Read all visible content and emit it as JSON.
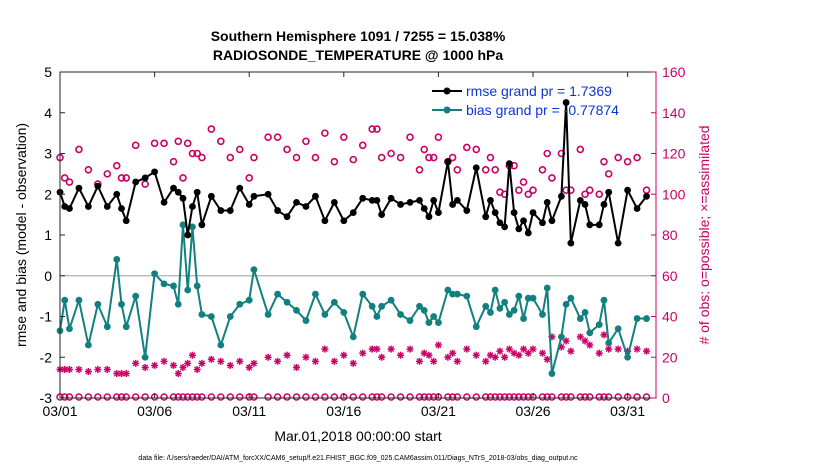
{
  "chart_data": {
    "type": "line",
    "title": "Southern Hemisphere 1091 / 7255 = 15.038%",
    "subtitle": "RADIOSONDE_TEMPERATURE @ 1000 hPa",
    "xlabel": "Mar.01,2018 00:00:00 start",
    "ylabel_left": "rmse and bias (model - observation)",
    "ylabel_right": "# of obs: o=possible; ×=assimilated",
    "footnote": "data file: /Users/raeder/DAI/ATM_forcXX/CAM6_setup/f.e21.FHIST_BGC.f09_025.CAM6assim.011/Diags_NTrS_2018-03/obs_diag_output.nc",
    "ylim_left": [
      -3,
      5
    ],
    "ylim_right": [
      0,
      160
    ],
    "xlim": [
      1,
      32.5
    ],
    "x_ticks": [
      1,
      6,
      11,
      16,
      21,
      26,
      31
    ],
    "x_tick_labels": [
      "03/01",
      "03/06",
      "03/11",
      "03/16",
      "03/21",
      "03/26",
      "03/31"
    ],
    "y_ticks_left": [
      -3,
      -2,
      -1,
      0,
      1,
      2,
      3,
      4,
      5
    ],
    "y_ticks_right": [
      0,
      20,
      40,
      60,
      80,
      100,
      120,
      140,
      160
    ],
    "colors": {
      "rmse": "#000000",
      "bias": "#128080",
      "counts": "#cc0066",
      "legend_text": "#0a36d8",
      "zero_line": "#b0b0b0"
    },
    "legend": {
      "placement": "top-right",
      "entries": [
        "rmse grand pr = 1.7369",
        "bias grand pr = -0.77874"
      ]
    },
    "series": [
      {
        "name": "rmse grand pr = 1.7369",
        "axis": "left",
        "x": [
          1.0,
          1.25,
          1.5,
          2.0,
          2.5,
          3.0,
          3.5,
          4.0,
          4.25,
          4.5,
          5.0,
          5.5,
          6.0,
          6.5,
          7.0,
          7.25,
          7.5,
          7.75,
          8.0,
          8.25,
          8.5,
          9.0,
          9.5,
          10.0,
          10.5,
          11.0,
          11.25,
          12.0,
          12.5,
          13.0,
          13.5,
          14.0,
          14.5,
          15.0,
          15.5,
          16.0,
          16.5,
          17.0,
          17.5,
          17.75,
          18.0,
          18.5,
          19.0,
          19.5,
          20.0,
          20.25,
          20.5,
          20.75,
          21.0,
          21.5,
          21.75,
          22.0,
          22.5,
          23.0,
          23.5,
          23.75,
          24.0,
          24.25,
          24.5,
          24.75,
          25.0,
          25.25,
          25.5,
          25.75,
          26.0,
          26.5,
          26.75,
          27.0,
          27.5,
          27.75,
          28.0,
          28.5,
          28.75,
          29.0,
          29.5,
          29.75,
          30.0,
          30.5,
          31.0,
          31.5,
          32.0
        ],
        "values": [
          2.05,
          1.7,
          1.65,
          2.15,
          1.7,
          2.2,
          1.7,
          2.0,
          1.65,
          1.35,
          2.3,
          2.4,
          2.55,
          1.8,
          2.15,
          2.05,
          1.9,
          1.0,
          1.7,
          2.05,
          1.25,
          1.95,
          1.6,
          1.6,
          2.15,
          1.75,
          1.95,
          2.0,
          1.6,
          1.45,
          1.8,
          1.7,
          1.95,
          1.35,
          1.8,
          1.35,
          1.55,
          1.9,
          1.85,
          1.85,
          1.5,
          1.9,
          1.75,
          1.8,
          1.85,
          1.65,
          1.45,
          1.85,
          1.55,
          2.8,
          1.75,
          1.85,
          1.6,
          2.65,
          1.45,
          1.85,
          1.55,
          1.3,
          1.2,
          2.75,
          1.55,
          1.15,
          1.35,
          1.05,
          1.55,
          1.3,
          1.8,
          1.35,
          1.95,
          4.25,
          0.8,
          1.85,
          1.75,
          1.25,
          1.25,
          1.75,
          2.05,
          0.8,
          2.1,
          1.65,
          1.95
        ]
      },
      {
        "name": "bias grand pr = -0.77874",
        "axis": "left",
        "x": [
          1.0,
          1.25,
          1.5,
          2.0,
          2.5,
          3.0,
          3.5,
          4.0,
          4.25,
          4.5,
          5.0,
          5.5,
          6.0,
          6.5,
          7.0,
          7.25,
          7.5,
          7.75,
          8.0,
          8.25,
          8.5,
          9.0,
          9.5,
          10.0,
          10.5,
          11.0,
          11.25,
          12.0,
          12.5,
          13.0,
          13.5,
          14.0,
          14.5,
          15.0,
          15.5,
          16.0,
          16.5,
          17.0,
          17.5,
          17.75,
          18.0,
          18.5,
          19.0,
          19.5,
          20.0,
          20.25,
          20.5,
          20.75,
          21.0,
          21.5,
          21.75,
          22.0,
          22.5,
          23.0,
          23.5,
          23.75,
          24.0,
          24.25,
          24.5,
          24.75,
          25.0,
          25.25,
          25.5,
          25.75,
          26.0,
          26.5,
          26.75,
          27.0,
          27.5,
          27.75,
          28.0,
          28.5,
          28.75,
          29.0,
          29.5,
          29.75,
          30.0,
          30.5,
          31.0,
          31.5,
          32.0
        ],
        "values": [
          -1.35,
          -0.6,
          -1.3,
          -0.6,
          -1.7,
          -0.7,
          -1.25,
          0.4,
          -0.7,
          -1.25,
          -0.5,
          -2.0,
          0.05,
          -0.2,
          -0.25,
          -0.7,
          1.25,
          -0.35,
          1.2,
          -0.25,
          -0.95,
          -1.0,
          -1.7,
          -1.0,
          -0.7,
          -0.6,
          0.15,
          -0.95,
          -0.45,
          -0.65,
          -0.85,
          -1.1,
          -0.45,
          -0.95,
          -0.65,
          -0.9,
          -1.5,
          -0.45,
          -0.75,
          -1.0,
          -0.75,
          -0.6,
          -0.95,
          -1.1,
          -0.75,
          -0.85,
          -1.15,
          -1.0,
          -1.15,
          -0.35,
          -0.45,
          -0.45,
          -0.5,
          -1.25,
          -0.75,
          -0.9,
          -0.35,
          -0.8,
          -0.65,
          -0.95,
          -0.85,
          -0.5,
          -1.05,
          -0.55,
          -0.55,
          -0.95,
          -0.3,
          -2.4,
          -1.5,
          -0.7,
          -0.55,
          -1.05,
          -0.9,
          -1.4,
          -1.2,
          -0.6,
          -1.65,
          -1.3,
          -2.0,
          -1.05,
          -1.05
        ]
      },
      {
        "name": "possible (o)",
        "axis": "right",
        "x": [
          1.0,
          1.25,
          1.5,
          2.0,
          2.5,
          3.0,
          3.5,
          4.0,
          4.25,
          4.5,
          5.0,
          5.5,
          6.0,
          6.5,
          7.0,
          7.25,
          7.5,
          7.75,
          8.0,
          8.25,
          8.5,
          9.0,
          9.5,
          10.0,
          10.5,
          11.0,
          11.25,
          12.0,
          12.5,
          13.0,
          13.5,
          14.0,
          14.5,
          15.0,
          15.5,
          16.0,
          16.5,
          17.0,
          17.5,
          17.75,
          18.0,
          18.5,
          19.0,
          19.5,
          20.0,
          20.25,
          20.5,
          20.75,
          21.0,
          21.5,
          21.75,
          22.0,
          22.5,
          23.0,
          23.5,
          23.75,
          24.0,
          24.25,
          24.5,
          24.75,
          25.0,
          25.25,
          25.5,
          25.75,
          26.0,
          26.5,
          26.75,
          27.0,
          27.5,
          27.75,
          28.0,
          28.5,
          28.75,
          29.0,
          29.5,
          29.75,
          30.0,
          30.5,
          31.0,
          31.5,
          32.0
        ],
        "values": [
          118,
          108,
          106,
          122,
          112,
          105,
          110,
          114,
          108,
          108,
          124,
          105,
          125,
          125,
          116,
          126,
          108,
          125,
          120,
          120,
          118,
          132,
          126,
          118,
          122,
          108,
          118,
          128,
          128,
          122,
          118,
          126,
          118,
          130,
          116,
          128,
          117,
          124,
          132,
          132,
          118,
          120,
          118,
          128,
          112,
          122,
          118,
          118,
          128,
          116,
          118,
          112,
          123,
          122,
          112,
          118,
          112,
          101,
          100,
          114,
          114,
          102,
          106,
          100,
          102,
          112,
          120,
          108,
          120,
          102,
          102,
          122,
          100,
          102,
          100,
          116,
          110,
          118,
          116,
          118,
          102
        ]
      },
      {
        "name": "assimilated (×)",
        "axis": "right",
        "x": [
          1.0,
          1.25,
          1.5,
          2.0,
          2.5,
          3.0,
          3.5,
          4.0,
          4.25,
          4.5,
          5.0,
          5.5,
          6.0,
          6.5,
          7.0,
          7.25,
          7.5,
          7.75,
          8.0,
          8.25,
          8.5,
          9.0,
          9.5,
          10.0,
          10.5,
          11.0,
          11.25,
          12.0,
          12.5,
          13.0,
          13.5,
          14.0,
          14.5,
          15.0,
          15.5,
          16.0,
          16.5,
          17.0,
          17.5,
          17.75,
          18.0,
          18.5,
          19.0,
          19.5,
          20.0,
          20.25,
          20.5,
          20.75,
          21.0,
          21.5,
          21.75,
          22.0,
          22.5,
          23.0,
          23.5,
          23.75,
          24.0,
          24.25,
          24.5,
          24.75,
          25.0,
          25.25,
          25.5,
          25.75,
          26.0,
          26.5,
          26.75,
          27.0,
          27.5,
          27.75,
          28.0,
          28.5,
          28.75,
          29.0,
          29.5,
          29.75,
          30.0,
          30.5,
          31.0,
          31.5,
          32.0
        ],
        "values": [
          14,
          14,
          14,
          14,
          13,
          14,
          14,
          12,
          12,
          12,
          17,
          15,
          16,
          18,
          16,
          12,
          15,
          17,
          21,
          14,
          17,
          19,
          18,
          16,
          18,
          15,
          17,
          20,
          18,
          21,
          15,
          20,
          18,
          24,
          18,
          21,
          17,
          22,
          24,
          24,
          20,
          24,
          21,
          24,
          18,
          22,
          21,
          18,
          26,
          20,
          22,
          18,
          24,
          21,
          18,
          21,
          20,
          23,
          20,
          24,
          22,
          21,
          24,
          22,
          24,
          22,
          19,
          30,
          25,
          28,
          23,
          30,
          28,
          26,
          22,
          31,
          24,
          24,
          23,
          24,
          23
        ]
      }
    ]
  }
}
